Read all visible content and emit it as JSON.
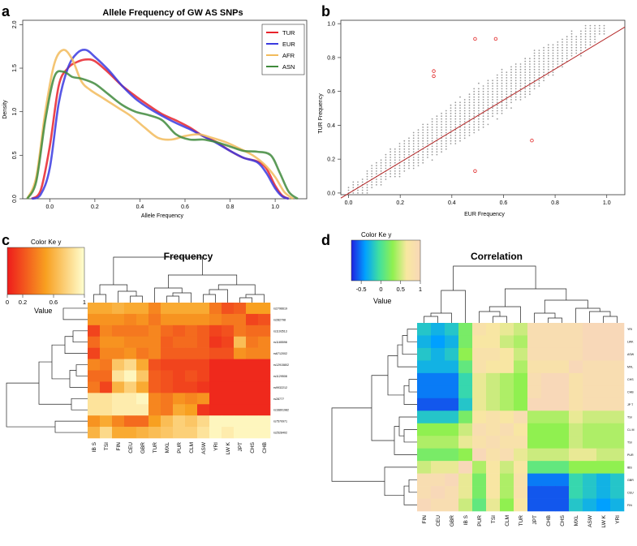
{
  "panels": {
    "a": "a",
    "b": "b",
    "c": "c",
    "d": "d"
  },
  "chart_data": [
    {
      "id": "a",
      "type": "line",
      "title": "Allele Frequency of GW AS SNPs",
      "xlabel": "Allele Frequency",
      "ylabel": "Density",
      "xlim": [
        -0.12,
        1.14
      ],
      "ylim": [
        0,
        2.05
      ],
      "xticks": [
        "0.0",
        "0.2",
        "0.4",
        "0.6",
        "0.8",
        "1.0"
      ],
      "yticks": [
        "0.0",
        "0.5",
        "1.0",
        "1.5",
        "2.0"
      ],
      "legend_position": "top-right",
      "series": [
        {
          "name": "TUR",
          "color": "#e8232b",
          "x": [
            -0.08,
            -0.04,
            0.0,
            0.04,
            0.08,
            0.12,
            0.16,
            0.2,
            0.26,
            0.32,
            0.38,
            0.44,
            0.5,
            0.56,
            0.62,
            0.68,
            0.74,
            0.8,
            0.86,
            0.92,
            0.96,
            1.0,
            1.03,
            1.06
          ],
          "y": [
            0.0,
            0.1,
            0.6,
            1.3,
            1.5,
            1.57,
            1.6,
            1.58,
            1.45,
            1.3,
            1.18,
            1.07,
            0.97,
            0.9,
            0.82,
            0.72,
            0.65,
            0.55,
            0.47,
            0.43,
            0.35,
            0.15,
            0.04,
            0.0
          ]
        },
        {
          "name": "EUR",
          "color": "#3a3ae0",
          "x": [
            -0.08,
            -0.04,
            0.0,
            0.04,
            0.08,
            0.12,
            0.16,
            0.2,
            0.26,
            0.32,
            0.38,
            0.44,
            0.5,
            0.56,
            0.62,
            0.68,
            0.74,
            0.8,
            0.86,
            0.92,
            0.96,
            1.0,
            1.03,
            1.06
          ],
          "y": [
            0.0,
            0.05,
            0.35,
            1.1,
            1.5,
            1.67,
            1.71,
            1.63,
            1.48,
            1.3,
            1.15,
            1.04,
            0.95,
            0.87,
            0.8,
            0.72,
            0.64,
            0.55,
            0.47,
            0.42,
            0.3,
            0.12,
            0.03,
            0.0
          ]
        },
        {
          "name": "AFR",
          "color": "#f2bb5c",
          "x": [
            -0.1,
            -0.06,
            -0.02,
            0.02,
            0.06,
            0.1,
            0.14,
            0.18,
            0.24,
            0.3,
            0.36,
            0.42,
            0.48,
            0.54,
            0.6,
            0.66,
            0.72,
            0.78,
            0.84,
            0.9,
            0.95,
            1.0,
            1.04,
            1.08
          ],
          "y": [
            0.0,
            0.25,
            1.0,
            1.55,
            1.71,
            1.6,
            1.35,
            1.25,
            1.15,
            1.05,
            0.95,
            0.82,
            0.7,
            0.68,
            0.72,
            0.74,
            0.7,
            0.65,
            0.58,
            0.5,
            0.4,
            0.25,
            0.08,
            0.0
          ]
        },
        {
          "name": "ASN",
          "color": "#3f8a3c",
          "x": [
            -0.1,
            -0.06,
            -0.02,
            0.02,
            0.06,
            0.1,
            0.14,
            0.2,
            0.26,
            0.32,
            0.38,
            0.44,
            0.5,
            0.56,
            0.62,
            0.68,
            0.74,
            0.8,
            0.86,
            0.92,
            0.98,
            1.02,
            1.06,
            1.1
          ],
          "y": [
            0.0,
            0.2,
            0.9,
            1.4,
            1.46,
            1.4,
            1.38,
            1.32,
            1.2,
            1.08,
            1.0,
            0.96,
            0.9,
            0.74,
            0.68,
            0.68,
            0.65,
            0.6,
            0.55,
            0.54,
            0.5,
            0.3,
            0.08,
            0.0
          ]
        }
      ]
    },
    {
      "id": "b",
      "type": "scatter",
      "xlabel": "EUR Frequency",
      "ylabel": "TUR  Frequency",
      "xlim": [
        -0.03,
        1.07
      ],
      "ylim": [
        -0.01,
        1.02
      ],
      "xticks": [
        "0.0",
        "0.2",
        "0.4",
        "0.6",
        "0.8",
        "1.0"
      ],
      "yticks": [
        "0.0",
        "0.2",
        "0.4",
        "0.6",
        "0.8",
        "1.0"
      ],
      "trend_line": {
        "from": [
          -0.03,
          -0.03
        ],
        "to": [
          1.07,
          0.98
        ],
        "color": "#b22222"
      },
      "band_half_width": 0.13,
      "outliers": [
        [
          0.49,
          0.91
        ],
        [
          0.57,
          0.91
        ],
        [
          0.33,
          0.72
        ],
        [
          0.33,
          0.69
        ],
        [
          0.71,
          0.31
        ],
        [
          0.49,
          0.13
        ]
      ],
      "outlier_color": "#e02020",
      "point_color": "#9a9a9a"
    },
    {
      "id": "c",
      "type": "heatmap",
      "title": "Frequency",
      "colorkey_title": "Color  Ke y",
      "colorkey_label": "Value",
      "colorkey_ticks": [
        "0",
        "0.2",
        "0.6",
        "1"
      ],
      "colorkey_stops": [
        "#ee1c1c",
        "#f8a020",
        "#ffffd0"
      ],
      "columns": [
        "IB S",
        "TSI",
        "FIN",
        "CEU",
        "GBR",
        "TUR",
        "MXL",
        "PUR",
        "CLM",
        "ASW",
        "YRI",
        "LW K",
        "JPT",
        "CHS",
        "CHB"
      ],
      "rows": [
        "rs2796619",
        "rs282798",
        "rs1193513",
        "rs1185598",
        "rs6712002",
        "rs12915802",
        "rs1129508",
        "rs9932212",
        "rs28777",
        "rs16891982",
        "rs7570971",
        "rs2528402"
      ],
      "values": [
        [
          0.55,
          0.55,
          0.6,
          0.55,
          0.55,
          0.4,
          0.55,
          0.55,
          0.55,
          0.55,
          0.35,
          0.2,
          0.25,
          0.5,
          0.5
        ],
        [
          0.45,
          0.45,
          0.45,
          0.4,
          0.45,
          0.35,
          0.45,
          0.45,
          0.45,
          0.45,
          0.4,
          0.35,
          0.35,
          0.15,
          0.2
        ],
        [
          0.15,
          0.4,
          0.35,
          0.35,
          0.35,
          0.4,
          0.3,
          0.25,
          0.3,
          0.25,
          0.15,
          0.2,
          0.35,
          0.3,
          0.3
        ],
        [
          0.3,
          0.45,
          0.45,
          0.4,
          0.4,
          0.4,
          0.25,
          0.3,
          0.3,
          0.25,
          0.1,
          0.15,
          0.65,
          0.35,
          0.4
        ],
        [
          0.15,
          0.4,
          0.4,
          0.45,
          0.35,
          0.4,
          0.25,
          0.25,
          0.25,
          0.25,
          0.2,
          0.2,
          0.45,
          0.4,
          0.4
        ],
        [
          0.4,
          0.35,
          0.7,
          0.8,
          0.55,
          0.2,
          0.15,
          0.15,
          0.15,
          0.15,
          0.05,
          0.05,
          0.05,
          0.05,
          0.05
        ],
        [
          0.3,
          0.3,
          0.85,
          0.95,
          0.7,
          0.25,
          0.2,
          0.15,
          0.2,
          0.15,
          0.05,
          0.05,
          0.05,
          0.05,
          0.05
        ],
        [
          0.35,
          0.15,
          0.6,
          0.75,
          0.55,
          0.25,
          0.2,
          0.15,
          0.15,
          0.1,
          0.05,
          0.05,
          0.05,
          0.05,
          0.05
        ],
        [
          0.85,
          0.85,
          0.9,
          0.9,
          0.95,
          0.4,
          0.35,
          0.45,
          0.4,
          0.45,
          0.05,
          0.05,
          0.05,
          0.05,
          0.05
        ],
        [
          0.85,
          0.85,
          0.9,
          0.9,
          0.9,
          0.4,
          0.35,
          0.55,
          0.5,
          0.1,
          0.05,
          0.05,
          0.05,
          0.05,
          0.05
        ],
        [
          0.45,
          0.55,
          0.4,
          0.3,
          0.3,
          0.5,
          0.65,
          0.75,
          0.7,
          0.8,
          0.95,
          0.95,
          0.95,
          0.95,
          0.95
        ],
        [
          0.6,
          0.8,
          0.55,
          0.55,
          0.6,
          0.65,
          0.7,
          0.75,
          0.75,
          0.85,
          0.95,
          0.9,
          0.95,
          0.95,
          0.95
        ]
      ]
    },
    {
      "id": "d",
      "type": "heatmap",
      "title": "Correlation",
      "colorkey_title": "Color   Ke y",
      "colorkey_label": "Value",
      "colorkey_ticks": [
        "-0.5",
        "0",
        "0.5",
        "1"
      ],
      "colorkey_stops": [
        "#2020e0",
        "#00a0ff",
        "#40e0a0",
        "#90f050",
        "#f8e8a0",
        "#f8d8b8"
      ],
      "columns": [
        "FIN",
        "CEU",
        "GBR",
        "IB S",
        "PUR",
        "TSI",
        "CLM",
        "TUR",
        "JPT",
        "CHB",
        "CHS",
        "MXL",
        "ASW",
        "LW K",
        "YRI"
      ],
      "rows": [
        "YRI",
        "LWK",
        "ASW",
        "MXL",
        "CHS",
        "CHB",
        "JP T",
        "TSI",
        "CL M",
        "TSI",
        "PUR",
        "IBS",
        "GBR",
        "CEU",
        "FIN"
      ],
      "values": [
        [
          -0.2,
          -0.3,
          -0.2,
          0.2,
          0.8,
          0.7,
          0.6,
          0.5,
          0.9,
          0.9,
          0.9,
          0.9,
          1.0,
          1.0,
          1.0
        ],
        [
          -0.3,
          -0.4,
          -0.3,
          0.2,
          0.7,
          0.7,
          0.5,
          0.4,
          0.9,
          0.9,
          0.9,
          0.9,
          1.0,
          1.0,
          1.0
        ],
        [
          -0.2,
          -0.3,
          -0.2,
          0.3,
          0.8,
          0.8,
          0.7,
          0.5,
          0.9,
          0.9,
          0.9,
          0.9,
          1.0,
          1.0,
          1.0
        ],
        [
          -0.3,
          -0.3,
          -0.3,
          0.1,
          0.8,
          0.7,
          0.7,
          0.4,
          0.8,
          0.8,
          0.8,
          1.0,
          0.9,
          0.9,
          0.9
        ],
        [
          -0.5,
          -0.5,
          -0.5,
          -0.1,
          0.6,
          0.5,
          0.4,
          0.3,
          0.9,
          1.0,
          1.0,
          0.8,
          0.9,
          0.9,
          0.9
        ],
        [
          -0.5,
          -0.5,
          -0.5,
          -0.1,
          0.6,
          0.5,
          0.4,
          0.3,
          0.9,
          1.0,
          1.0,
          0.8,
          0.9,
          0.9,
          0.9
        ],
        [
          -0.6,
          -0.6,
          -0.6,
          -0.2,
          0.6,
          0.5,
          0.4,
          0.3,
          1.0,
          1.0,
          1.0,
          0.8,
          0.9,
          0.9,
          0.9
        ],
        [
          -0.2,
          -0.2,
          -0.2,
          0.2,
          0.7,
          0.8,
          0.7,
          0.9,
          0.4,
          0.4,
          0.4,
          0.6,
          0.5,
          0.5,
          0.5
        ],
        [
          0.3,
          0.3,
          0.3,
          0.5,
          0.9,
          0.8,
          0.9,
          0.7,
          0.3,
          0.3,
          0.3,
          0.5,
          0.4,
          0.4,
          0.4
        ],
        [
          0.4,
          0.4,
          0.4,
          0.6,
          0.8,
          0.9,
          0.8,
          0.8,
          0.3,
          0.3,
          0.3,
          0.5,
          0.4,
          0.4,
          0.4
        ],
        [
          0.2,
          0.2,
          0.2,
          0.3,
          1.0,
          0.8,
          0.9,
          0.6,
          0.5,
          0.5,
          0.5,
          0.6,
          0.6,
          0.5,
          0.5
        ],
        [
          0.5,
          0.6,
          0.6,
          1.0,
          0.4,
          0.7,
          0.5,
          0.7,
          0.1,
          0.1,
          0.1,
          0.3,
          0.3,
          0.3,
          0.3
        ],
        [
          0.9,
          0.9,
          1.0,
          0.6,
          0.2,
          0.7,
          0.4,
          0.8,
          -0.5,
          -0.5,
          -0.5,
          -0.1,
          -0.2,
          -0.3,
          -0.2
        ],
        [
          0.9,
          1.0,
          0.9,
          0.6,
          0.2,
          0.7,
          0.4,
          0.8,
          -0.6,
          -0.6,
          -0.6,
          -0.1,
          -0.2,
          -0.3,
          -0.2
        ],
        [
          1.0,
          0.9,
          0.9,
          0.5,
          0.1,
          0.6,
          0.3,
          0.7,
          -0.6,
          -0.6,
          -0.6,
          -0.2,
          -0.3,
          -0.4,
          -0.3
        ]
      ]
    }
  ]
}
